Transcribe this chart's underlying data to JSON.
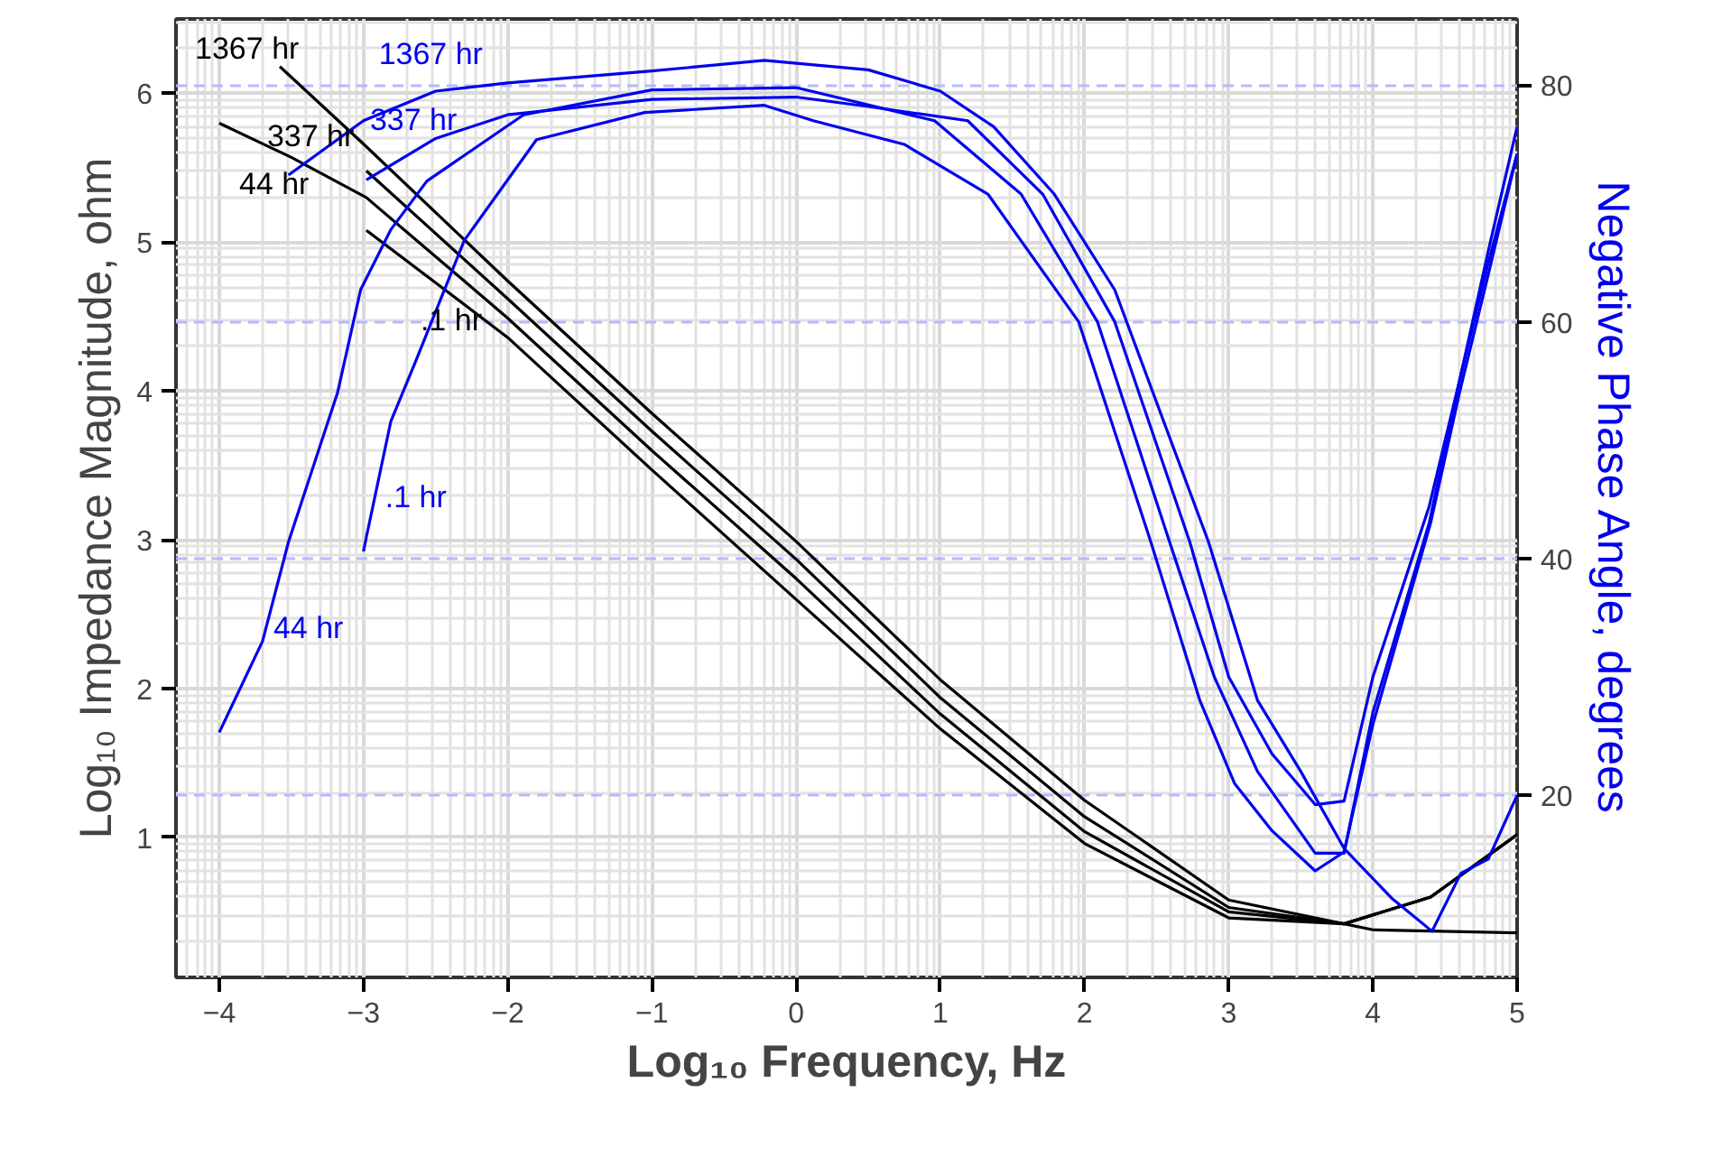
{
  "chart_data": {
    "type": "line",
    "xlabel": "Log₁₀ Frequency, Hz",
    "ylabel": "Log₁₀ Impedance Magnitude, ohm",
    "y2label": "Negative Phase Angle, degrees",
    "xlim": [
      -4.3,
      5
    ],
    "xticks": [
      -4,
      -3,
      -2,
      -1,
      0,
      1,
      2,
      3,
      4,
      5
    ],
    "ylim": [
      0.06,
      6.5
    ],
    "yticks": [
      1,
      2,
      3,
      4,
      5,
      6
    ],
    "y2lim": [
      4.6,
      85.6
    ],
    "y2ticks": [
      20,
      40,
      60,
      80
    ],
    "grid": true,
    "line_style": "solid",
    "marker": "none",
    "series": [
      {
        "name": "1367 hr",
        "color": "#000000",
        "x": [
          -3.58,
          -3,
          -2,
          -1,
          0,
          1,
          2,
          3,
          3.8,
          4.4,
          5
        ],
        "values": [
          6.18,
          5.66,
          4.74,
          3.85,
          2.99,
          2.06,
          1.25,
          0.58,
          0.42,
          0.6,
          1.02
        ]
      },
      {
        "name": "337 hr",
        "color": "#000000",
        "x": [
          -2.98,
          -2,
          -1,
          0,
          1,
          2,
          3,
          3.8,
          4.4,
          5
        ],
        "values": [
          5.48,
          4.62,
          3.73,
          2.87,
          1.94,
          1.14,
          0.53,
          0.42,
          0.6,
          1.02
        ]
      },
      {
        "name": "44 hr",
        "color": "#000000",
        "x": [
          -4,
          -3.5,
          -2.98,
          -2,
          -1,
          0,
          1,
          2,
          3,
          3.8,
          4.4,
          5
        ],
        "values": [
          5.8,
          5.57,
          5.3,
          4.49,
          3.6,
          2.74,
          1.83,
          1.04,
          0.5,
          0.42,
          0.6,
          1.02
        ]
      },
      {
        "name": ".1 hr",
        "color": "#000000",
        "x": [
          -2.98,
          -2,
          -1,
          0,
          1,
          2,
          3,
          3.8,
          4,
          5
        ],
        "values": [
          5.08,
          4.36,
          3.47,
          2.6,
          1.73,
          0.96,
          0.46,
          0.42,
          0.38,
          0.36
        ]
      },
      {
        "name": "1367 hr",
        "color": "#0000ee",
        "axis": "y2",
        "x": [
          -3.52,
          -3,
          -2.5,
          -2,
          -1,
          -0.22,
          0.5,
          1,
          1.37,
          1.79,
          2.21,
          2.86,
          3.2,
          3.5,
          3.8,
          4.13,
          4.41,
          4.61,
          4.8,
          5
        ],
        "values": [
          72.4,
          77,
          79.5,
          80.2,
          81.2,
          82.1,
          81.3,
          79.5,
          76.5,
          70.8,
          62.7,
          41.4,
          28,
          22,
          15.5,
          11.3,
          8.5,
          13.4,
          14.6,
          20
        ]
      },
      {
        "name": "337 hr",
        "color": "#0000ee",
        "axis": "y2",
        "x": [
          -2.98,
          -2.5,
          -2,
          -1,
          0,
          0.5,
          1.19,
          1.71,
          2.21,
          2.73,
          3,
          3.3,
          3.6,
          3.8,
          4,
          4.39,
          4.6,
          4.8,
          5
        ],
        "values": [
          72,
          75.5,
          77.5,
          78.8,
          79,
          78.2,
          77,
          70.8,
          60,
          41.4,
          30,
          23.5,
          19.2,
          19.5,
          30,
          44.4,
          55,
          66,
          76.5
        ]
      },
      {
        "name": "44 hr",
        "color": "#0000ee",
        "axis": "y2",
        "x": [
          -4,
          -3.7,
          -3.52,
          -3.18,
          -3.02,
          -2.81,
          -2.56,
          -1.89,
          -1,
          0,
          0.96,
          1.56,
          2.09,
          2.59,
          2.9,
          3.2,
          3.6,
          3.8,
          4,
          4.39,
          4.6,
          4.8,
          5
        ],
        "values": [
          25.3,
          33,
          41.4,
          54,
          62.7,
          67.8,
          71.9,
          77.5,
          79.6,
          79.8,
          77,
          70.8,
          60,
          41.4,
          30,
          22,
          15.1,
          15.1,
          27,
          43,
          55,
          65,
          74.2
        ]
      },
      {
        "name": ".1 hr",
        "color": "#0000ee",
        "axis": "y2",
        "x": [
          -3,
          -2.98,
          -2.81,
          -2.64,
          -2.3,
          -1.8,
          -1.05,
          -0.22,
          0.12,
          0.75,
          1.33,
          1.96,
          2.46,
          2.8,
          3.04,
          3.3,
          3.6,
          3.8,
          4,
          4.4,
          4.6,
          4.8,
          5
        ],
        "values": [
          40.6,
          41.8,
          51.6,
          56.6,
          66.9,
          75.4,
          77.7,
          78.3,
          77,
          75,
          70.8,
          60,
          41.4,
          28,
          21,
          17,
          13.6,
          15.2,
          26,
          43,
          54,
          64,
          74.2
        ]
      }
    ]
  }
}
